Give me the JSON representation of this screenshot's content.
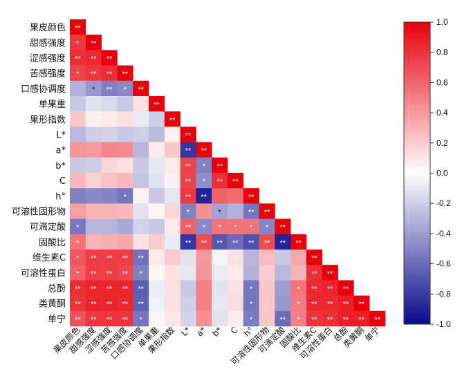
{
  "chart_data": {
    "type": "heatmap",
    "title": "",
    "variables": [
      "果皮颜色",
      "甜感强度",
      "涩感强度",
      "苦感强度",
      "口感协调度",
      "单果重",
      "果形指数",
      "L*",
      "a*",
      "b*",
      "C",
      "h°",
      "可溶性固形物",
      "可滴定酸",
      "固酸比",
      "维生素C",
      "可溶性蛋白",
      "总酚",
      "类黄酮",
      "单宁"
    ],
    "row_labels": [
      "果皮颜色",
      "甜感强度",
      "涩感强度",
      "苦感强度",
      "口感协调度",
      "单果重",
      "果形指数",
      "L*",
      "a*",
      "b*",
      "C",
      "h°",
      "可溶性固形物",
      "可滴定酸",
      "固酸比",
      "维生素C",
      "可溶性蛋白",
      "总酚",
      "类黄酮",
      "单宁"
    ],
    "col_labels": [
      "果皮颜色",
      "甜感强度",
      "涩感强度",
      "苦感强度",
      "口感协调度",
      "单果重",
      "果形指数",
      "L*",
      "a*",
      "b*",
      "C",
      "h°",
      "可溶性固形物",
      "可滴定酸",
      "固酸比",
      "维生素C",
      "可溶性蛋白",
      "总酚",
      "类黄酮",
      "单宁"
    ],
    "colorbar": {
      "min": -1.0,
      "max": 1.0,
      "ticks": [
        "1.0",
        "0.8",
        "0.6",
        "0.4",
        "0.2",
        "0.0",
        "-0.2",
        "-0.4",
        "-0.6",
        "-0.8",
        "-1.0"
      ]
    },
    "values": [
      [
        1.0
      ],
      [
        0.78,
        1.0
      ],
      [
        0.82,
        0.84,
        1.0
      ],
      [
        0.74,
        0.78,
        0.82,
        1.0
      ],
      [
        -0.32,
        -0.42,
        -0.52,
        -0.48,
        1.0
      ],
      [
        -0.22,
        -0.12,
        -0.15,
        -0.22,
        0.12,
        1.0
      ],
      [
        0.22,
        0.06,
        0.08,
        0.12,
        -0.08,
        -0.2,
        1.0
      ],
      [
        -0.28,
        -0.2,
        -0.18,
        -0.22,
        -0.2,
        -0.28,
        0.06,
        1.0
      ],
      [
        0.42,
        0.4,
        0.48,
        0.46,
        -0.3,
        0.08,
        0.22,
        -0.82,
        1.0
      ],
      [
        -0.22,
        -0.2,
        0.16,
        0.12,
        -0.22,
        -0.1,
        0.08,
        0.74,
        -0.52,
        1.0
      ],
      [
        0.28,
        0.18,
        0.24,
        0.28,
        -0.24,
        -0.12,
        0.06,
        0.74,
        -0.46,
        0.82,
        1.0
      ],
      [
        -0.52,
        -0.48,
        -0.5,
        -0.56,
        0.06,
        -0.22,
        -0.1,
        0.78,
        -0.9,
        0.62,
        0.58,
        1.0
      ],
      [
        0.38,
        0.3,
        0.3,
        0.28,
        -0.12,
        0.04,
        0.16,
        -0.52,
        0.44,
        -0.38,
        -0.32,
        -0.56,
        1.0
      ],
      [
        -0.55,
        -0.3,
        -0.3,
        -0.35,
        -0.18,
        -0.22,
        0.08,
        0.62,
        -0.48,
        0.55,
        0.55,
        0.55,
        -0.5,
        1.0
      ],
      [
        0.55,
        0.3,
        0.32,
        0.35,
        0.12,
        0.2,
        -0.08,
        -0.82,
        0.7,
        -0.68,
        -0.6,
        -0.72,
        0.7,
        -0.9,
        1.0
      ],
      [
        0.66,
        0.76,
        0.76,
        0.76,
        -0.58,
        0.08,
        0.2,
        -0.12,
        0.4,
        -0.05,
        0.12,
        -0.3,
        0.26,
        -0.22,
        0.34,
        1.0
      ],
      [
        0.62,
        0.76,
        0.76,
        0.72,
        -0.52,
        0.04,
        0.12,
        -0.1,
        0.42,
        -0.08,
        0.08,
        -0.32,
        0.2,
        -0.28,
        0.3,
        0.82,
        1.0
      ],
      [
        0.82,
        0.86,
        0.86,
        0.86,
        -0.66,
        -0.08,
        0.12,
        -0.22,
        0.5,
        -0.12,
        0.12,
        -0.56,
        0.22,
        -0.4,
        0.54,
        0.84,
        0.86,
        1.0
      ],
      [
        0.8,
        0.86,
        0.86,
        0.84,
        -0.64,
        -0.06,
        0.12,
        -0.2,
        0.5,
        -0.1,
        0.14,
        -0.56,
        0.22,
        -0.42,
        0.52,
        0.84,
        0.84,
        0.88,
        1.0
      ],
      [
        0.68,
        0.78,
        0.8,
        0.8,
        -0.56,
        -0.04,
        0.1,
        -0.18,
        0.44,
        -0.12,
        0.08,
        -0.54,
        0.22,
        -0.6,
        0.5,
        0.8,
        0.82,
        0.88,
        0.88,
        1.0
      ]
    ],
    "significance": [
      [
        "**"
      ],
      [
        "*",
        "**"
      ],
      [
        "**",
        "**",
        "**"
      ],
      [
        "*",
        "**",
        "**",
        "**"
      ],
      [
        "",
        "*",
        "**",
        "*",
        "**"
      ],
      [
        "",
        "",
        "",
        "",
        "",
        "**"
      ],
      [
        "",
        "",
        "",
        "",
        "",
        "",
        "**"
      ],
      [
        "",
        "",
        "",
        "",
        "",
        "",
        "",
        "**"
      ],
      [
        "",
        "",
        "",
        "",
        "",
        "",
        "",
        "**",
        "**"
      ],
      [
        "",
        "",
        "",
        "",
        "",
        "",
        "",
        "**",
        "*",
        "**"
      ],
      [
        "",
        "",
        "",
        "",
        "",
        "",
        "",
        "**",
        "*",
        "**",
        "**"
      ],
      [
        "",
        "",
        "",
        "*",
        "",
        "",
        "",
        "**",
        "**",
        "",
        "",
        "**"
      ],
      [
        "",
        "",
        "",
        "",
        "",
        "",
        "",
        "*",
        "",
        "*",
        "",
        "**",
        "**"
      ],
      [
        "*",
        "",
        "",
        "",
        "",
        "",
        "",
        "**",
        "*",
        "*",
        "*",
        "*",
        "*",
        "**"
      ],
      [
        "*",
        "",
        "",
        "",
        "",
        "",
        "",
        "**",
        "**",
        "**",
        "**",
        "**",
        "**",
        "**",
        "**"
      ],
      [
        "*",
        "**",
        "**",
        "**",
        "**",
        "",
        "",
        "",
        "",
        "",
        "",
        "",
        "",
        "",
        "",
        "**"
      ],
      [
        "*",
        "**",
        "**",
        "**",
        "*",
        "",
        "",
        "",
        "",
        "",
        "",
        "",
        "",
        "",
        "",
        "**",
        "**"
      ],
      [
        "**",
        "**",
        "**",
        "**",
        "**",
        "",
        "",
        "",
        "",
        "",
        "",
        "*",
        "",
        "",
        "*",
        "**",
        "**",
        "**"
      ],
      [
        "**",
        "**",
        "**",
        "**",
        "**",
        "",
        "",
        "",
        "",
        "",
        "",
        "*",
        "",
        "",
        "*",
        "**",
        "**",
        "**",
        "**"
      ],
      [
        "**",
        "**",
        "**",
        "**",
        "*",
        "",
        "",
        "",
        "",
        "",
        "",
        "*",
        "",
        "**",
        "*",
        "**",
        "**",
        "**",
        "**",
        "**"
      ]
    ],
    "colors": {
      "positive": "#e8000b",
      "zero": "#ffffff",
      "negative": "#0a0a8c"
    }
  }
}
